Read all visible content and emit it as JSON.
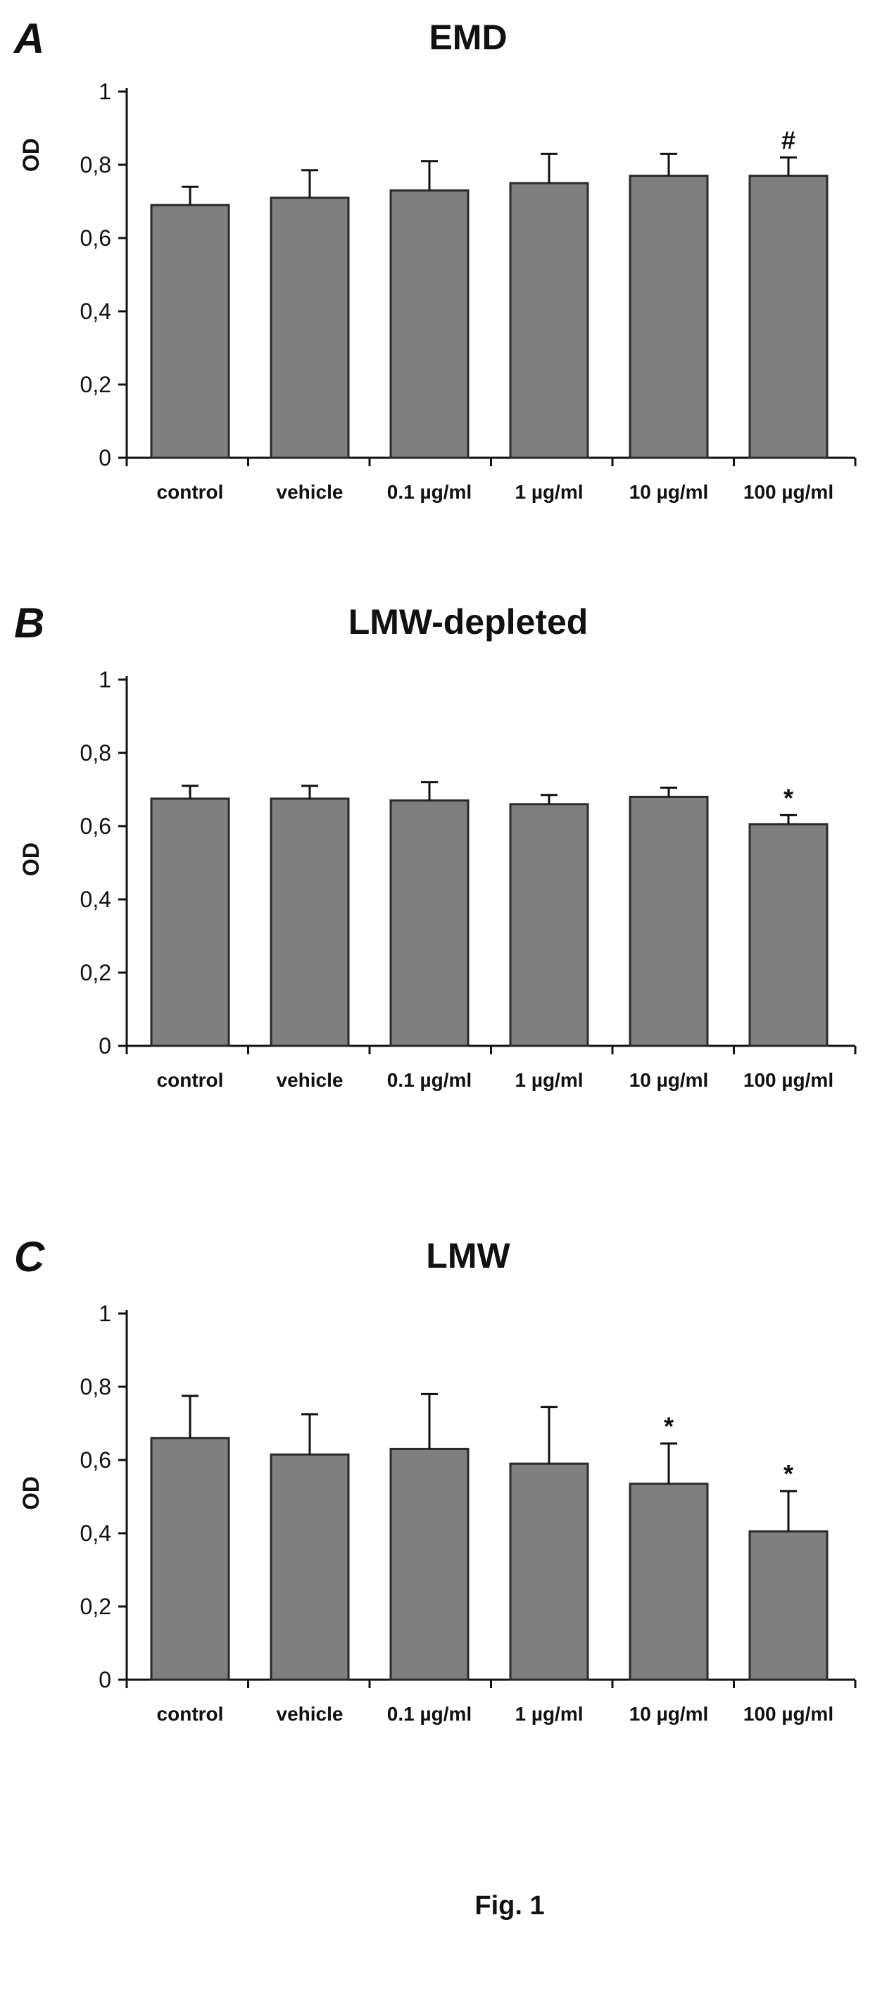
{
  "figure": {
    "caption": "Fig. 1"
  },
  "chart_data": [
    {
      "type": "bar",
      "panel_label": "A",
      "title": "EMD",
      "ylabel": "OD",
      "ylim": [
        0,
        1
      ],
      "yticks": [
        "0",
        "0,2",
        "0,4",
        "0,6",
        "0,8",
        "1"
      ],
      "categories": [
        "control",
        "vehicle",
        "0.1 µg/ml",
        "1 µg/ml",
        "10 µg/ml",
        "100 µg/ml"
      ],
      "values": [
        0.69,
        0.71,
        0.73,
        0.75,
        0.77,
        0.77
      ],
      "error_upper": [
        0.05,
        0.075,
        0.08,
        0.08,
        0.06,
        0.05
      ],
      "annotations": [
        "",
        "",
        "",
        "",
        "",
        "#"
      ],
      "bar_color": "#7f7f7f",
      "grid": false
    },
    {
      "type": "bar",
      "panel_label": "B",
      "title": "LMW-depleted",
      "ylabel": "OD",
      "ylim": [
        0,
        1
      ],
      "yticks": [
        "0",
        "0,2",
        "0,4",
        "0,6",
        "0,8",
        "1"
      ],
      "categories": [
        "control",
        "vehicle",
        "0.1 µg/ml",
        "1 µg/ml",
        "10 µg/ml",
        "100 µg/ml"
      ],
      "values": [
        0.675,
        0.675,
        0.67,
        0.66,
        0.68,
        0.605
      ],
      "error_upper": [
        0.035,
        0.035,
        0.05,
        0.025,
        0.025,
        0.025
      ],
      "annotations": [
        "",
        "",
        "",
        "",
        "",
        "*"
      ],
      "bar_color": "#7f7f7f",
      "grid": false
    },
    {
      "type": "bar",
      "panel_label": "C",
      "title": "LMW",
      "ylabel": "OD",
      "ylim": [
        0,
        1
      ],
      "yticks": [
        "0",
        "0,2",
        "0,4",
        "0,6",
        "0,8",
        "1"
      ],
      "categories": [
        "control",
        "vehicle",
        "0.1 µg/ml",
        "1 µg/ml",
        "10 µg/ml",
        "100 µg/ml"
      ],
      "values": [
        0.66,
        0.615,
        0.63,
        0.59,
        0.535,
        0.405
      ],
      "error_upper": [
        0.115,
        0.11,
        0.15,
        0.155,
        0.11,
        0.11
      ],
      "annotations": [
        "",
        "",
        "",
        "",
        "*",
        "*"
      ],
      "bar_color": "#7f7f7f",
      "grid": false
    }
  ]
}
